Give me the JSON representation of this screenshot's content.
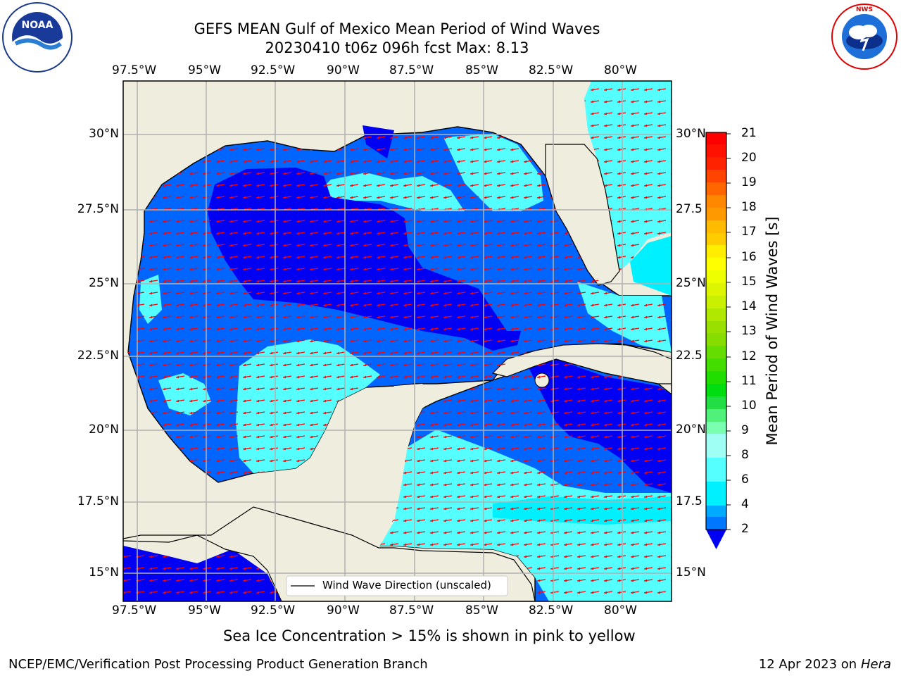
{
  "header": {
    "title_line1": "GEFS MEAN Gulf of Mexico Mean Period of Wind Waves",
    "title_line2": "20230410 t06z 096h fcst   Max: 8.13"
  },
  "logos": {
    "left": {
      "name": "noaa-logo",
      "text": "NOAA"
    },
    "right": {
      "name": "nws-logo",
      "text": "NATIONAL WEATHER SERVICE"
    }
  },
  "map": {
    "lon_labels": [
      "97.5°W",
      "95°W",
      "92.5°W",
      "90°W",
      "87.5°W",
      "85°W",
      "82.5°W",
      "80°W"
    ],
    "lat_labels_left": [
      "30°N",
      "27.5°N",
      "25°N",
      "22.5°N",
      "20°N",
      "17.5°N",
      "15°N"
    ],
    "lat_labels_right": [
      "30°N",
      "27.5",
      "25°N",
      "22.5",
      "20°N",
      "17.5",
      "15°N"
    ],
    "legend": "Wind Wave Direction (unscaled)",
    "colors": {
      "land": "#efedde",
      "ocean_dark": "#0000f2",
      "ocean_mid": "#0066ff",
      "ocean_cyan": "#00f0ff",
      "ocean_light": "#55ffff",
      "arrow": "#ff0000",
      "grid": "#b0b0b0"
    }
  },
  "colorbar": {
    "label": "Mean Period of Wind Waves [s]",
    "ticks": [
      "2",
      "4",
      "6",
      "8",
      "9",
      "10",
      "11",
      "12",
      "13",
      "14",
      "15",
      "16",
      "17",
      "18",
      "19",
      "20",
      "21"
    ],
    "colors": [
      "#0077ff",
      "#00e6ff",
      "#55ffff",
      "#a0fff5",
      "#50f07a",
      "#11dd11",
      "#33cc00",
      "#77dd00",
      "#bbee00",
      "#e0f000",
      "#ffff00",
      "#ffdd00",
      "#ffbb00",
      "#ff8800",
      "#ff6600",
      "#ff3300",
      "#ff0000"
    ]
  },
  "footer": {
    "ice_note": "Sea Ice Concentration > 15% is shown in pink to yellow",
    "credit": "NCEP/EMC/Verification Post Processing Product Generation Branch",
    "date": "12 Apr 2023 on ",
    "host": "Hera"
  }
}
